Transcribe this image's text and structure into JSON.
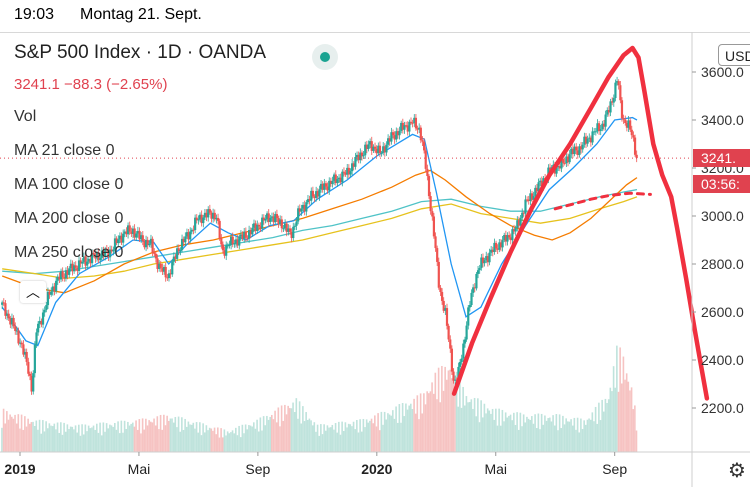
{
  "status": {
    "time": "19:03",
    "date": "Montag 21. Sept."
  },
  "legend": {
    "title": "S&P 500 Index · 1D · OANDA",
    "price": "3241.1  −88.3 (−2.65%)",
    "indicators": [
      "Vol",
      "MA 21 close 0",
      "MA 100 close 0",
      "MA 200 close 0",
      "MA 250 close 0"
    ]
  },
  "axis_tags": {
    "price": "3241.",
    "countdown": "03:56:",
    "currency": "USD"
  },
  "colors": {
    "up": "#26a69a",
    "down": "#ef5350",
    "ma21": "#2196f3",
    "ma100": "#f57c00",
    "ma200": "#e6c21d",
    "ma250": "#4fc3c7",
    "drawing": "#f0303f",
    "last": "#e0424f"
  },
  "chart_data": {
    "type": "candlestick",
    "symbol": "S&P 500 Index",
    "interval": "1D",
    "source": "OANDA",
    "last": 3241.1,
    "change": -88.3,
    "change_pct": -2.65,
    "ylim": [
      2000,
      3700
    ],
    "yticks": [
      2200,
      2400,
      2600,
      2800,
      3000,
      3200,
      3400,
      3600
    ],
    "ytick_labels": [
      "2200.0",
      "2400.0",
      "2600.0",
      "2800.0",
      "3000.0",
      "3200.0",
      "3400.0",
      "3600.0"
    ],
    "xticks": [
      {
        "label": "2019",
        "month": 0
      },
      {
        "label": "Mai",
        "month": 4
      },
      {
        "label": "Sep",
        "month": 8
      },
      {
        "label": "2020",
        "month": 12
      },
      {
        "label": "Mai",
        "month": 16
      },
      {
        "label": "Sep",
        "month": 20
      }
    ],
    "xlim": [
      0,
      22.6
    ],
    "close": [
      [
        -0.6,
        2630
      ],
      [
        -0.3,
        2560
      ],
      [
        0,
        2480
      ],
      [
        0.15,
        2420
      ],
      [
        0.3,
        2350
      ],
      [
        0.4,
        2280
      ],
      [
        0.55,
        2520
      ],
      [
        0.8,
        2600
      ],
      [
        1.0,
        2680
      ],
      [
        1.3,
        2740
      ],
      [
        1.6,
        2770
      ],
      [
        2.0,
        2800
      ],
      [
        2.5,
        2830
      ],
      [
        3.0,
        2850
      ],
      [
        3.5,
        2930
      ],
      [
        3.8,
        2940
      ],
      [
        4.1,
        2900
      ],
      [
        4.4,
        2880
      ],
      [
        4.7,
        2780
      ],
      [
        5.0,
        2750
      ],
      [
        5.3,
        2860
      ],
      [
        5.7,
        2930
      ],
      [
        6.0,
        2990
      ],
      [
        6.4,
        3010
      ],
      [
        6.6,
        3000
      ],
      [
        6.8,
        2850
      ],
      [
        7.0,
        2880
      ],
      [
        7.3,
        2900
      ],
      [
        7.6,
        2920
      ],
      [
        8.0,
        2960
      ],
      [
        8.4,
        3000
      ],
      [
        8.8,
        2970
      ],
      [
        9.1,
        2920
      ],
      [
        9.4,
        3020
      ],
      [
        9.8,
        3080
      ],
      [
        10.2,
        3120
      ],
      [
        10.6,
        3150
      ],
      [
        11.0,
        3180
      ],
      [
        11.4,
        3250
      ],
      [
        11.8,
        3300
      ],
      [
        12.1,
        3260
      ],
      [
        12.5,
        3330
      ],
      [
        12.9,
        3370
      ],
      [
        13.2,
        3390
      ],
      [
        13.45,
        3360
      ],
      [
        13.6,
        3250
      ],
      [
        13.75,
        3100
      ],
      [
        13.9,
        2950
      ],
      [
        14.1,
        2700
      ],
      [
        14.3,
        2600
      ],
      [
        14.5,
        2400
      ],
      [
        14.6,
        2300
      ],
      [
        14.75,
        2350
      ],
      [
        14.9,
        2450
      ],
      [
        15.1,
        2620
      ],
      [
        15.4,
        2780
      ],
      [
        15.7,
        2830
      ],
      [
        16.0,
        2870
      ],
      [
        16.4,
        2910
      ],
      [
        16.7,
        2950
      ],
      [
        17.0,
        3050
      ],
      [
        17.3,
        3100
      ],
      [
        17.6,
        3150
      ],
      [
        17.9,
        3200
      ],
      [
        18.2,
        3210
      ],
      [
        18.5,
        3260
      ],
      [
        18.8,
        3280
      ],
      [
        19.1,
        3320
      ],
      [
        19.4,
        3360
      ],
      [
        19.6,
        3380
      ],
      [
        19.8,
        3440
      ],
      [
        19.95,
        3500
      ],
      [
        20.1,
        3580
      ],
      [
        20.2,
        3450
      ],
      [
        20.3,
        3400
      ],
      [
        20.45,
        3380
      ],
      [
        20.6,
        3330
      ],
      [
        20.75,
        3241
      ]
    ],
    "ma21": [
      [
        -0.6,
        2620
      ],
      [
        0.2,
        2480
      ],
      [
        0.6,
        2460
      ],
      [
        1.2,
        2640
      ],
      [
        2.0,
        2760
      ],
      [
        3.0,
        2830
      ],
      [
        3.8,
        2900
      ],
      [
        4.5,
        2890
      ],
      [
        5.0,
        2800
      ],
      [
        5.6,
        2880
      ],
      [
        6.4,
        2970
      ],
      [
        7.0,
        2930
      ],
      [
        7.6,
        2900
      ],
      [
        8.4,
        2960
      ],
      [
        9.2,
        2980
      ],
      [
        10.0,
        3070
      ],
      [
        11.0,
        3150
      ],
      [
        12.0,
        3250
      ],
      [
        13.2,
        3340
      ],
      [
        13.6,
        3320
      ],
      [
        14.0,
        3100
      ],
      [
        14.5,
        2800
      ],
      [
        15.0,
        2580
      ],
      [
        15.5,
        2620
      ],
      [
        16.2,
        2800
      ],
      [
        17.0,
        2960
      ],
      [
        17.8,
        3110
      ],
      [
        18.6,
        3200
      ],
      [
        19.4,
        3300
      ],
      [
        20.0,
        3400
      ],
      [
        20.6,
        3410
      ],
      [
        20.75,
        3400
      ]
    ],
    "ma100": [
      [
        -0.6,
        2750
      ],
      [
        0.5,
        2700
      ],
      [
        1.5,
        2680
      ],
      [
        2.5,
        2730
      ],
      [
        3.5,
        2800
      ],
      [
        4.5,
        2850
      ],
      [
        5.5,
        2880
      ],
      [
        6.5,
        2900
      ],
      [
        7.5,
        2930
      ],
      [
        8.5,
        2960
      ],
      [
        9.5,
        2990
      ],
      [
        10.5,
        3030
      ],
      [
        11.5,
        3070
      ],
      [
        12.5,
        3120
      ],
      [
        13.3,
        3170
      ],
      [
        13.8,
        3190
      ],
      [
        14.3,
        3150
      ],
      [
        15.0,
        3080
      ],
      [
        15.8,
        3010
      ],
      [
        16.5,
        2960
      ],
      [
        17.3,
        2920
      ],
      [
        17.9,
        2900
      ],
      [
        18.5,
        2930
      ],
      [
        19.2,
        2990
      ],
      [
        19.8,
        3060
      ],
      [
        20.4,
        3130
      ],
      [
        20.75,
        3160
      ]
    ],
    "ma200": [
      [
        -0.6,
        2780
      ],
      [
        0.5,
        2760
      ],
      [
        1.5,
        2740
      ],
      [
        2.5,
        2750
      ],
      [
        3.5,
        2770
      ],
      [
        4.5,
        2800
      ],
      [
        5.5,
        2820
      ],
      [
        6.5,
        2840
      ],
      [
        7.5,
        2860
      ],
      [
        8.5,
        2880
      ],
      [
        9.5,
        2900
      ],
      [
        10.5,
        2930
      ],
      [
        11.5,
        2960
      ],
      [
        12.5,
        2990
      ],
      [
        13.5,
        3030
      ],
      [
        14.5,
        3050
      ],
      [
        15.5,
        3010
      ],
      [
        16.5,
        2990
      ],
      [
        17.5,
        2970
      ],
      [
        18.5,
        2990
      ],
      [
        19.5,
        3030
      ],
      [
        20.3,
        3060
      ],
      [
        20.75,
        3080
      ]
    ],
    "ma250": [
      [
        -0.6,
        2770
      ],
      [
        0.5,
        2760
      ],
      [
        1.5,
        2770
      ],
      [
        2.5,
        2790
      ],
      [
        3.5,
        2810
      ],
      [
        4.5,
        2830
      ],
      [
        5.5,
        2850
      ],
      [
        6.5,
        2870
      ],
      [
        7.5,
        2890
      ],
      [
        8.5,
        2910
      ],
      [
        9.5,
        2940
      ],
      [
        10.5,
        2960
      ],
      [
        11.5,
        2990
      ],
      [
        12.5,
        3020
      ],
      [
        13.5,
        3060
      ],
      [
        14.5,
        3070
      ],
      [
        15.5,
        3040
      ],
      [
        16.5,
        3020
      ],
      [
        17.5,
        3020
      ],
      [
        18.5,
        3050
      ],
      [
        19.5,
        3080
      ],
      [
        20.3,
        3100
      ],
      [
        20.75,
        3110
      ]
    ],
    "volume": [
      [
        -0.6,
        0.4
      ],
      [
        0.5,
        0.3
      ],
      [
        2,
        0.25
      ],
      [
        4,
        0.3
      ],
      [
        5,
        0.35
      ],
      [
        7,
        0.2
      ],
      [
        8,
        0.3
      ],
      [
        9.3,
        0.5
      ],
      [
        10,
        0.25
      ],
      [
        11.5,
        0.3
      ],
      [
        12.5,
        0.4
      ],
      [
        13.6,
        0.55
      ],
      [
        14.0,
        0.75
      ],
      [
        14.5,
        0.85
      ],
      [
        15.0,
        0.55
      ],
      [
        16.0,
        0.4
      ],
      [
        17.0,
        0.35
      ],
      [
        18.0,
        0.35
      ],
      [
        19.0,
        0.3
      ],
      [
        19.8,
        0.55
      ],
      [
        20.1,
        1.0
      ],
      [
        20.3,
        0.9
      ],
      [
        20.6,
        0.6
      ],
      [
        20.75,
        0.3
      ]
    ]
  }
}
